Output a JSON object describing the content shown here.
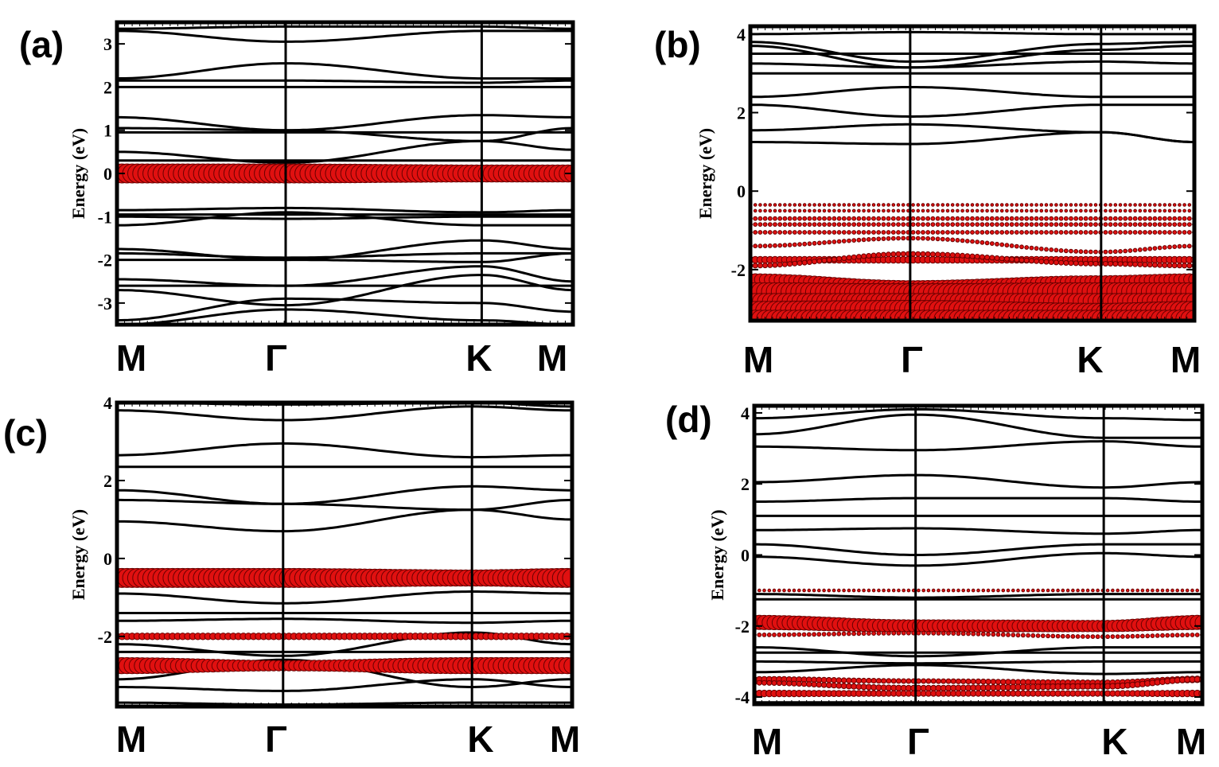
{
  "figure": {
    "type": "band-structure-grid"
  },
  "colors": {
    "band": "#000000",
    "weight": "#e01010",
    "weight_edge": "#6a0000"
  },
  "chart_data": [
    {
      "type": "line",
      "panel_label": "(a)",
      "ylabel": "Energy (eV)",
      "ylim": [
        -3.5,
        3.5
      ],
      "yticks": [
        -3,
        -2,
        -1,
        0,
        1,
        2,
        3
      ],
      "ytick_labels": [
        "-3",
        "-2",
        "-1",
        "0",
        "1",
        "2",
        "3"
      ],
      "k_labels": [
        "M",
        "Γ",
        "K",
        "M"
      ],
      "k_positions": [
        0,
        0.37,
        0.8,
        1
      ],
      "series": [
        {
          "name": "band",
          "values": [
            3.35,
            3.4,
            3.4,
            3.35
          ]
        },
        {
          "name": "band",
          "values": [
            3.3,
            3.05,
            3.3,
            3.3
          ]
        },
        {
          "name": "band",
          "values": [
            2.2,
            2.55,
            2.2,
            2.2
          ]
        },
        {
          "name": "band",
          "values": [
            2.15,
            2.15,
            2.1,
            2.15
          ]
        },
        {
          "name": "band",
          "values": [
            2.0,
            2.0,
            2.0,
            2.0
          ]
        },
        {
          "name": "band",
          "values": [
            1.3,
            1.0,
            1.35,
            1.3
          ]
        },
        {
          "name": "band",
          "values": [
            1.05,
            1.0,
            0.75,
            1.05
          ]
        },
        {
          "name": "band",
          "values": [
            0.95,
            0.95,
            0.95,
            0.95
          ]
        },
        {
          "name": "band",
          "values": [
            0.5,
            0.25,
            0.75,
            0.55
          ]
        },
        {
          "name": "band",
          "values": [
            0.3,
            0.3,
            0.3,
            0.3
          ]
        },
        {
          "name": "band",
          "values": [
            -0.85,
            -0.8,
            -0.9,
            -0.85
          ]
        },
        {
          "name": "band",
          "values": [
            -0.95,
            -0.95,
            -0.95,
            -0.95
          ]
        },
        {
          "name": "band",
          "values": [
            -1.0,
            -1.05,
            -1.0,
            -1.0
          ]
        },
        {
          "name": "band",
          "values": [
            -1.2,
            -0.9,
            -1.2,
            -1.2
          ]
        },
        {
          "name": "band",
          "values": [
            -1.75,
            -2.0,
            -1.55,
            -1.75
          ]
        },
        {
          "name": "band",
          "values": [
            -1.85,
            -1.95,
            -1.85,
            -1.85
          ]
        },
        {
          "name": "band",
          "values": [
            -2.0,
            -2.0,
            -2.05,
            -1.85
          ]
        },
        {
          "name": "band",
          "values": [
            -2.45,
            -2.6,
            -2.15,
            -2.5
          ]
        },
        {
          "name": "band",
          "values": [
            -2.6,
            -2.6,
            -2.6,
            -2.6
          ]
        },
        {
          "name": "band",
          "values": [
            -2.7,
            -3.05,
            -2.35,
            -2.7
          ]
        },
        {
          "name": "band",
          "values": [
            -3.4,
            -2.9,
            -3.0,
            -3.2
          ]
        },
        {
          "name": "band",
          "values": [
            -3.5,
            -3.15,
            -3.4,
            -3.5
          ]
        }
      ],
      "weights": [
        {
          "name": "projected band",
          "values": [
            0.0,
            0.0,
            0.0,
            0.0
          ],
          "size": [
            1.0,
            1.0,
            0.9,
            0.9
          ]
        }
      ]
    },
    {
      "type": "line",
      "panel_label": "(b)",
      "ylabel": "Energy (eV)",
      "ylim": [
        -3.3,
        4.2
      ],
      "yticks": [
        -2,
        0,
        2,
        4
      ],
      "ytick_labels": [
        "-2",
        "0",
        "2",
        "4"
      ],
      "k_labels": [
        "M",
        "Γ",
        "K",
        "M"
      ],
      "k_positions": [
        0,
        0.36,
        0.79,
        1
      ],
      "series": [
        {
          "name": "band",
          "values": [
            4.0,
            4.05,
            4.0,
            4.0
          ]
        },
        {
          "name": "band",
          "values": [
            3.8,
            3.3,
            3.75,
            3.8
          ]
        },
        {
          "name": "band",
          "values": [
            3.7,
            3.15,
            3.6,
            3.7
          ]
        },
        {
          "name": "band",
          "values": [
            3.5,
            3.5,
            3.5,
            3.5
          ]
        },
        {
          "name": "band",
          "values": [
            3.25,
            3.15,
            3.3,
            3.25
          ]
        },
        {
          "name": "band",
          "values": [
            3.0,
            3.0,
            3.0,
            3.0
          ]
        },
        {
          "name": "band",
          "values": [
            2.4,
            2.65,
            2.4,
            2.4
          ]
        },
        {
          "name": "band",
          "values": [
            2.2,
            1.9,
            2.2,
            2.2
          ]
        },
        {
          "name": "band",
          "values": [
            1.55,
            1.7,
            1.5,
            1.25
          ]
        },
        {
          "name": "band",
          "values": [
            1.25,
            1.2,
            1.5,
            1.25
          ]
        }
      ],
      "weights": [
        {
          "name": "projected band",
          "values": [
            -0.35,
            -0.35,
            -0.35,
            -0.35
          ],
          "size": [
            0.15,
            0.15,
            0.15,
            0.15
          ]
        },
        {
          "name": "projected band",
          "values": [
            -0.5,
            -0.5,
            -0.5,
            -0.5
          ],
          "size": [
            0.15,
            0.15,
            0.15,
            0.15
          ]
        },
        {
          "name": "projected band",
          "values": [
            -0.7,
            -0.7,
            -0.7,
            -0.7
          ],
          "size": [
            0.2,
            0.2,
            0.2,
            0.2
          ]
        },
        {
          "name": "projected band",
          "values": [
            -0.85,
            -0.85,
            -0.85,
            -0.85
          ],
          "size": [
            0.2,
            0.2,
            0.2,
            0.2
          ]
        },
        {
          "name": "projected band",
          "values": [
            -1.05,
            -1.05,
            -1.05,
            -1.05
          ],
          "size": [
            0.2,
            0.2,
            0.2,
            0.2
          ]
        },
        {
          "name": "projected band",
          "values": [
            -1.4,
            -1.2,
            -1.55,
            -1.4
          ],
          "size": [
            0.2,
            0.2,
            0.2,
            0.2
          ]
        },
        {
          "name": "projected band",
          "values": [
            -1.75,
            -1.75,
            -1.75,
            -1.75
          ],
          "size": [
            0.35,
            0.35,
            0.35,
            0.35
          ]
        },
        {
          "name": "projected band",
          "values": [
            -1.9,
            -1.6,
            -1.85,
            -1.9
          ],
          "size": [
            0.25,
            0.25,
            0.25,
            0.25
          ]
        },
        {
          "name": "projected band",
          "values": [
            -2.25,
            -2.45,
            -2.3,
            -2.25
          ],
          "size": [
            0.6,
            0.7,
            0.6,
            0.6
          ]
        },
        {
          "name": "projected band",
          "values": [
            -2.55,
            -2.6,
            -2.55,
            -2.55
          ],
          "size": [
            0.9,
            1.0,
            0.9,
            0.9
          ]
        },
        {
          "name": "projected band",
          "values": [
            -2.8,
            -2.8,
            -2.8,
            -2.8
          ],
          "size": [
            0.8,
            0.8,
            0.8,
            0.8
          ]
        },
        {
          "name": "projected band",
          "values": [
            -3.05,
            -3.0,
            -3.1,
            -3.05
          ],
          "size": [
            1.0,
            0.9,
            1.0,
            1.0
          ]
        },
        {
          "name": "projected band",
          "values": [
            -3.25,
            -3.25,
            -3.25,
            -3.25
          ],
          "size": [
            0.9,
            0.9,
            0.9,
            0.9
          ]
        }
      ]
    },
    {
      "type": "line",
      "panel_label": "(c)",
      "ylabel": "Energy (eV)",
      "ylim": [
        -3.8,
        4.0
      ],
      "yticks": [
        -2,
        0,
        2,
        4
      ],
      "ytick_labels": [
        "-2",
        "0",
        "2",
        "4"
      ],
      "k_labels": [
        "M",
        "Γ",
        "K",
        "M"
      ],
      "k_positions": [
        0,
        0.365,
        0.78,
        1
      ],
      "series": [
        {
          "name": "band",
          "values": [
            4.0,
            3.95,
            4.0,
            3.9
          ]
        },
        {
          "name": "band",
          "values": [
            3.8,
            3.55,
            3.9,
            3.8
          ]
        },
        {
          "name": "band",
          "values": [
            2.65,
            2.95,
            2.6,
            2.65
          ]
        },
        {
          "name": "band",
          "values": [
            2.35,
            2.35,
            2.35,
            2.35
          ]
        },
        {
          "name": "band",
          "values": [
            1.75,
            1.4,
            1.85,
            1.75
          ]
        },
        {
          "name": "band",
          "values": [
            1.5,
            1.4,
            1.25,
            1.5
          ]
        },
        {
          "name": "band",
          "values": [
            0.95,
            0.7,
            1.25,
            1.0
          ]
        },
        {
          "name": "band",
          "values": [
            -0.9,
            -1.15,
            -0.85,
            -0.9
          ]
        },
        {
          "name": "band",
          "values": [
            -1.4,
            -1.4,
            -1.4,
            -1.4
          ]
        },
        {
          "name": "band",
          "values": [
            -1.6,
            -1.55,
            -1.65,
            -1.6
          ]
        },
        {
          "name": "band",
          "values": [
            -2.2,
            -2.5,
            -1.9,
            -2.2
          ]
        },
        {
          "name": "band",
          "values": [
            -2.4,
            -2.4,
            -2.4,
            -2.4
          ]
        },
        {
          "name": "band",
          "values": [
            -3.1,
            -2.6,
            -3.3,
            -3.1
          ]
        },
        {
          "name": "band",
          "values": [
            -3.3,
            -3.4,
            -3.1,
            -3.3
          ]
        },
        {
          "name": "band",
          "values": [
            -3.7,
            -3.75,
            -3.7,
            -3.7
          ]
        }
      ],
      "weights": [
        {
          "name": "projected band",
          "values": [
            -0.5,
            -0.5,
            -0.5,
            -0.5
          ],
          "size": [
            1.0,
            1.0,
            0.85,
            1.0
          ]
        },
        {
          "name": "projected band",
          "values": [
            -2.0,
            -2.0,
            -2.0,
            -2.0
          ],
          "size": [
            0.35,
            0.35,
            0.35,
            0.35
          ]
        },
        {
          "name": "projected band",
          "values": [
            -2.75,
            -2.75,
            -2.75,
            -2.75
          ],
          "size": [
            0.85,
            0.55,
            0.85,
            0.85
          ]
        }
      ]
    },
    {
      "type": "line",
      "panel_label": "(d)",
      "ylabel": "Energy (eV)",
      "ylim": [
        -4.2,
        4.2
      ],
      "yticks": [
        -4,
        -2,
        0,
        2,
        4
      ],
      "ytick_labels": [
        "-4",
        "-2",
        "0",
        "2",
        "4"
      ],
      "k_labels": [
        "M",
        "Γ",
        "K",
        "M"
      ],
      "k_positions": [
        0,
        0.36,
        0.78,
        1
      ],
      "series": [
        {
          "name": "band",
          "values": [
            3.85,
            4.1,
            3.85,
            3.8
          ]
        },
        {
          "name": "band",
          "values": [
            3.4,
            3.95,
            3.3,
            3.3
          ]
        },
        {
          "name": "band",
          "values": [
            3.05,
            2.95,
            3.2,
            3.05
          ]
        },
        {
          "name": "band",
          "values": [
            2.05,
            2.25,
            1.9,
            2.05
          ]
        },
        {
          "name": "band",
          "values": [
            1.5,
            1.6,
            1.6,
            1.5
          ]
        },
        {
          "name": "band",
          "values": [
            1.1,
            1.1,
            1.1,
            1.1
          ]
        },
        {
          "name": "band",
          "values": [
            0.7,
            0.75,
            0.6,
            0.7
          ]
        },
        {
          "name": "band",
          "values": [
            0.3,
            0.0,
            0.3,
            0.3
          ]
        },
        {
          "name": "band",
          "values": [
            -0.05,
            -0.3,
            0.05,
            -0.05
          ]
        },
        {
          "name": "band",
          "values": [
            -1.1,
            -1.2,
            -1.1,
            -1.1
          ]
        },
        {
          "name": "band",
          "values": [
            -1.25,
            -1.25,
            -1.25,
            -1.25
          ]
        },
        {
          "name": "band",
          "values": [
            -2.6,
            -2.85,
            -2.6,
            -2.6
          ]
        },
        {
          "name": "band",
          "values": [
            -2.75,
            -2.75,
            -2.75,
            -2.75
          ]
        },
        {
          "name": "band",
          "values": [
            -3.0,
            -3.05,
            -3.0,
            -3.0
          ]
        },
        {
          "name": "band",
          "values": [
            -3.3,
            -3.1,
            -3.35,
            -3.3
          ]
        },
        {
          "name": "band",
          "values": [
            -4.15,
            -4.15,
            -4.15,
            -4.15
          ]
        }
      ],
      "weights": [
        {
          "name": "projected band",
          "values": [
            -1.0,
            -1.0,
            -1.0,
            -1.0
          ],
          "size": [
            0.15,
            0.15,
            0.15,
            0.15
          ]
        },
        {
          "name": "projected band",
          "values": [
            -1.9,
            -2.0,
            -2.0,
            -1.9
          ],
          "size": [
            0.75,
            0.65,
            0.6,
            0.75
          ]
        },
        {
          "name": "projected band",
          "values": [
            -2.25,
            -2.2,
            -2.3,
            -2.25
          ],
          "size": [
            0.2,
            0.2,
            0.2,
            0.2
          ]
        },
        {
          "name": "projected band",
          "values": [
            -3.5,
            -3.55,
            -3.6,
            -3.5
          ],
          "size": [
            0.3,
            0.25,
            0.3,
            0.35
          ]
        },
        {
          "name": "projected band",
          "values": [
            -3.6,
            -3.75,
            -3.7,
            -3.5
          ],
          "size": [
            0.25,
            0.3,
            0.3,
            0.3
          ]
        },
        {
          "name": "projected band",
          "values": [
            -3.9,
            -3.9,
            -3.9,
            -3.9
          ],
          "size": [
            0.35,
            0.3,
            0.3,
            0.35
          ]
        }
      ]
    }
  ]
}
